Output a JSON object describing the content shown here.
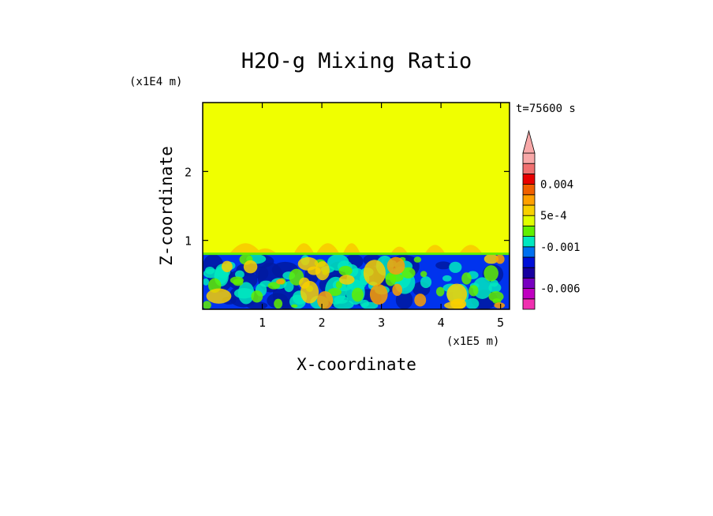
{
  "chart_data": {
    "type": "heatmap",
    "title": "H2O-g Mixing Ratio",
    "xlabel": "X-coordinate",
    "ylabel": "Z-coordinate",
    "x_unit": "(x1E5 m)",
    "y_unit": "(x1E4 m)",
    "time_label": "t=75600 s",
    "xlim": [
      0,
      5.15
    ],
    "ylim": [
      0,
      3.0
    ],
    "x_ticks": [
      1,
      2,
      3,
      4,
      5
    ],
    "y_ticks": [
      1,
      2
    ],
    "x_tick_labels": [
      "1",
      "2",
      "3",
      "4",
      "5"
    ],
    "y_tick_labels": [
      "1",
      "2"
    ],
    "grid": false,
    "field_regions": [
      {
        "name": "upper layer",
        "z_range": [
          0.8,
          3.0
        ],
        "level": 0,
        "color": "#f0ff00"
      },
      {
        "name": "lower layer",
        "z_range": [
          0.0,
          0.8
        ],
        "level": -0.003,
        "color": "#0033ee"
      }
    ],
    "colorbar": {
      "colors": [
        "#f030b0",
        "#c000c0",
        "#7800c0",
        "#1800a0",
        "#0010d8",
        "#0070f0",
        "#00e8c0",
        "#60f000",
        "#e0ff00",
        "#f8d000",
        "#ffa000",
        "#f06000",
        "#e80000",
        "#f07070",
        "#f8a8a8"
      ],
      "labels": [
        "-0.006",
        "-0.001",
        "5e-4",
        "0.004"
      ],
      "label_levels": [
        2,
        6,
        9,
        12
      ],
      "extend_max": true
    }
  }
}
